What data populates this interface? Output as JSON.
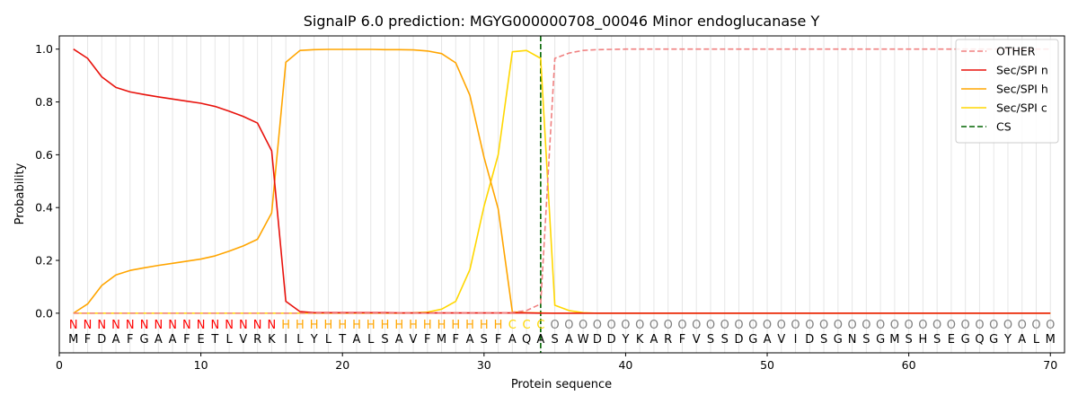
{
  "chart_data": {
    "type": "line",
    "title": "SignalP 6.0 prediction: MGYG000000708_00046 Minor endoglucanase Y",
    "xlabel": "Protein sequence",
    "ylabel": "Probability",
    "xlim": [
      0,
      71
    ],
    "ylim": [
      -0.15,
      1.05
    ],
    "xticks": [
      0,
      10,
      20,
      30,
      40,
      50,
      60,
      70
    ],
    "yticks": [
      0.0,
      0.2,
      0.4,
      0.6,
      0.8,
      1.0
    ],
    "xtick_labels": [
      "0",
      "10",
      "20",
      "30",
      "40",
      "50",
      "60",
      "70"
    ],
    "ytick_labels": [
      "0.0",
      "0.2",
      "0.4",
      "0.6",
      "0.8",
      "1.0"
    ],
    "grid": "vertical lines at each residue",
    "legend_position": "top-right",
    "sequence": [
      "M",
      "F",
      "D",
      "A",
      "F",
      "G",
      "A",
      "A",
      "F",
      "E",
      "T",
      "L",
      "V",
      "R",
      "K",
      "I",
      "L",
      "Y",
      "L",
      "T",
      "A",
      "L",
      "S",
      "A",
      "V",
      "F",
      "M",
      "F",
      "A",
      "S",
      "F",
      "A",
      "Q",
      "A",
      "S",
      "A",
      "W",
      "D",
      "D",
      "Y",
      "K",
      "A",
      "R",
      "F",
      "V",
      "S",
      "S",
      "D",
      "G",
      "A",
      "V",
      "I",
      "D",
      "S",
      "G",
      "N",
      "S",
      "G",
      "M",
      "S",
      "H",
      "S",
      "E",
      "G",
      "Q",
      "G",
      "Y",
      "A",
      "L",
      "M"
    ],
    "labels": [
      "N",
      "N",
      "N",
      "N",
      "N",
      "N",
      "N",
      "N",
      "N",
      "N",
      "N",
      "N",
      "N",
      "N",
      "N",
      "H",
      "H",
      "H",
      "H",
      "H",
      "H",
      "H",
      "H",
      "H",
      "H",
      "H",
      "H",
      "H",
      "H",
      "H",
      "H",
      "C",
      "C",
      "C",
      "O",
      "O",
      "O",
      "O",
      "O",
      "O",
      "O",
      "O",
      "O",
      "O",
      "O",
      "O",
      "O",
      "O",
      "O",
      "O",
      "O",
      "O",
      "O",
      "O",
      "O",
      "O",
      "O",
      "O",
      "O",
      "O",
      "O",
      "O",
      "O",
      "O",
      "O",
      "O",
      "O",
      "O",
      "O",
      "O"
    ],
    "label_colors": {
      "N": "#ff0000",
      "H": "#ffa500",
      "C": "#ffd700",
      "O": "#808080"
    },
    "series": [
      {
        "name": "OTHER",
        "color": "#f08080",
        "dash": "dashed",
        "x": [
          1,
          2,
          3,
          4,
          5,
          6,
          7,
          8,
          9,
          10,
          11,
          12,
          13,
          14,
          15,
          16,
          17,
          18,
          19,
          20,
          21,
          22,
          23,
          24,
          25,
          26,
          27,
          28,
          29,
          30,
          31,
          32,
          33,
          34,
          35,
          36,
          37,
          38,
          39,
          40,
          41,
          42,
          43,
          44,
          45,
          46,
          47,
          48,
          49,
          50,
          51,
          52,
          53,
          54,
          55,
          56,
          57,
          58,
          59,
          60,
          61,
          62,
          63,
          64,
          65,
          66,
          67,
          68,
          69,
          70
        ],
        "values": [
          0,
          0,
          0,
          0,
          0,
          0,
          0,
          0,
          0,
          0,
          0,
          0,
          0,
          0,
          0,
          0,
          0,
          0,
          0,
          0,
          0,
          0,
          0,
          0,
          0,
          0,
          0,
          0,
          0,
          0,
          0,
          0.003,
          0.01,
          0.035,
          0.965,
          0.985,
          0.995,
          0.998,
          0.999,
          1,
          1,
          1,
          1,
          1,
          1,
          1,
          1,
          1,
          1,
          1,
          1,
          1,
          1,
          1,
          1,
          1,
          1,
          1,
          1,
          1,
          1,
          1,
          1,
          1,
          1,
          1,
          1,
          1,
          1,
          1
        ]
      },
      {
        "name": "Sec/SPI n",
        "color": "#e8120c",
        "dash": "solid",
        "x": [
          1,
          2,
          3,
          4,
          5,
          6,
          7,
          8,
          9,
          10,
          11,
          12,
          13,
          14,
          15,
          16,
          17,
          18,
          19,
          20,
          21,
          22,
          23,
          24,
          25,
          26,
          27,
          28,
          29,
          30,
          31,
          32,
          33,
          34,
          35,
          36,
          37,
          38,
          39,
          40,
          41,
          42,
          43,
          44,
          45,
          46,
          47,
          48,
          49,
          50,
          51,
          52,
          53,
          54,
          55,
          56,
          57,
          58,
          59,
          60,
          61,
          62,
          63,
          64,
          65,
          66,
          67,
          68,
          69,
          70
        ],
        "values": [
          1.0,
          0.965,
          0.895,
          0.855,
          0.838,
          0.828,
          0.819,
          0.811,
          0.803,
          0.795,
          0.783,
          0.765,
          0.745,
          0.72,
          0.615,
          0.045,
          0.006,
          0.002,
          0.002,
          0.002,
          0.002,
          0.002,
          0.002,
          0.001,
          0.001,
          0.001,
          0.001,
          0.001,
          0.001,
          0.001,
          0.001,
          0.001,
          0.001,
          0,
          0,
          0,
          0,
          0,
          0,
          0,
          0,
          0,
          0,
          0,
          0,
          0,
          0,
          0,
          0,
          0,
          0,
          0,
          0,
          0,
          0,
          0,
          0,
          0,
          0,
          0,
          0,
          0,
          0,
          0,
          0,
          0,
          0,
          0,
          0,
          0
        ]
      },
      {
        "name": "Sec/SPI h",
        "color": "#ffa500",
        "dash": "solid",
        "x": [
          1,
          2,
          3,
          4,
          5,
          6,
          7,
          8,
          9,
          10,
          11,
          12,
          13,
          14,
          15,
          16,
          17,
          18,
          19,
          20,
          21,
          22,
          23,
          24,
          25,
          26,
          27,
          28,
          29,
          30,
          31,
          32,
          33,
          34,
          35,
          36,
          37,
          38,
          39,
          40,
          41,
          42,
          43,
          44,
          45,
          46,
          47,
          48,
          49,
          50,
          51,
          52,
          53,
          54,
          55,
          56,
          57,
          58,
          59,
          60,
          61,
          62,
          63,
          64,
          65,
          66,
          67,
          68,
          69,
          70
        ],
        "values": [
          0,
          0.035,
          0.105,
          0.145,
          0.162,
          0.172,
          0.181,
          0.189,
          0.197,
          0.205,
          0.217,
          0.235,
          0.255,
          0.28,
          0.38,
          0.95,
          0.995,
          0.998,
          0.999,
          0.999,
          0.999,
          0.999,
          0.998,
          0.998,
          0.997,
          0.993,
          0.983,
          0.948,
          0.825,
          0.59,
          0.395,
          0.005,
          0.002,
          0.001,
          0,
          0,
          0,
          0,
          0,
          0,
          0,
          0,
          0,
          0,
          0,
          0,
          0,
          0,
          0,
          0,
          0,
          0,
          0,
          0,
          0,
          0,
          0,
          0,
          0,
          0,
          0,
          0,
          0,
          0,
          0,
          0,
          0,
          0,
          0,
          0
        ]
      },
      {
        "name": "Sec/SPI c",
        "color": "#ffd700",
        "dash": "solid",
        "x": [
          1,
          2,
          3,
          4,
          5,
          6,
          7,
          8,
          9,
          10,
          11,
          12,
          13,
          14,
          15,
          16,
          17,
          18,
          19,
          20,
          21,
          22,
          23,
          24,
          25,
          26,
          27,
          28,
          29,
          30,
          31,
          32,
          33,
          34,
          35,
          36,
          37,
          38,
          39,
          40,
          41,
          42,
          43,
          44,
          45,
          46,
          47,
          48,
          49,
          50,
          51,
          52,
          53,
          54,
          55,
          56,
          57,
          58,
          59,
          60,
          61,
          62,
          63,
          64,
          65,
          66,
          67,
          68,
          69,
          70
        ],
        "values": [
          0,
          0,
          0,
          0,
          0,
          0,
          0,
          0,
          0,
          0,
          0,
          0,
          0,
          0,
          0,
          0,
          0,
          0,
          0,
          0,
          0,
          0,
          0,
          0,
          0.001,
          0.004,
          0.015,
          0.045,
          0.165,
          0.405,
          0.6,
          0.99,
          0.995,
          0.965,
          0.03,
          0.01,
          0.002,
          0,
          0,
          0,
          0,
          0,
          0,
          0,
          0,
          0,
          0,
          0,
          0,
          0,
          0,
          0,
          0,
          0,
          0,
          0,
          0,
          0,
          0,
          0,
          0,
          0,
          0,
          0,
          0,
          0,
          0,
          0,
          0,
          0
        ]
      },
      {
        "name": "CS",
        "color": "#006400",
        "dash": "dashed",
        "type": "vline",
        "x_value": 34
      }
    ]
  }
}
